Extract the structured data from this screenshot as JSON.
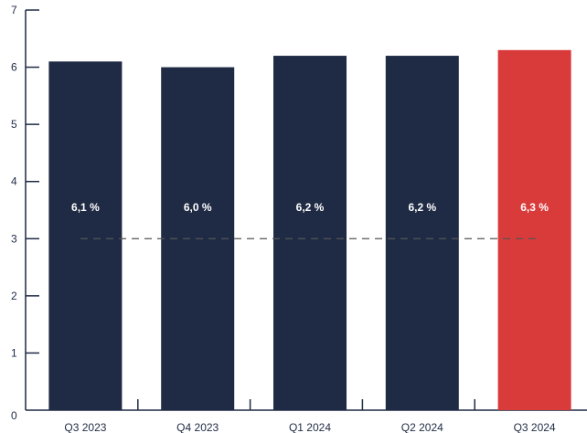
{
  "chart_data": {
    "type": "bar",
    "categories": [
      "Q3 2023",
      "Q4 2023",
      "Q1 2024",
      "Q2 2024",
      "Q3 2024"
    ],
    "values": [
      6.1,
      6.0,
      6.2,
      6.2,
      6.3
    ],
    "data_labels": [
      "6,1 %",
      "6,0 %",
      "6,2 %",
      "6,2 %",
      "6,3 %"
    ],
    "bar_colors": [
      "#1f2a44",
      "#1f2a44",
      "#1f2a44",
      "#1f2a44",
      "#d93a3a"
    ],
    "ylim": [
      0,
      7
    ],
    "yticks": [
      0,
      1,
      2,
      3,
      4,
      5,
      6,
      7
    ],
    "reference_line": {
      "value": 3,
      "style": "dashed",
      "color": "#555555"
    },
    "title": "",
    "xlabel": "",
    "ylabel": "",
    "grid": false,
    "legend": "none"
  }
}
